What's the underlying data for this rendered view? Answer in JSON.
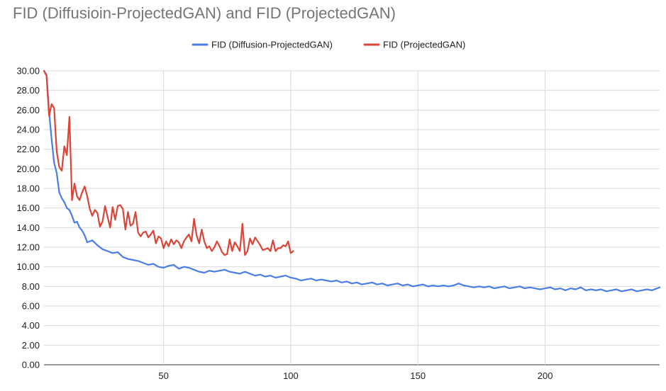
{
  "chart_data": {
    "type": "line",
    "title": "FID (Diffusioin-ProjectedGAN) and FID (ProjectedGAN)",
    "xlabel": "",
    "ylabel": "",
    "xlim": [
      3,
      245
    ],
    "ylim": [
      0,
      30
    ],
    "grid": true,
    "legend_position": "top",
    "x_ticks": [
      50,
      100,
      150,
      200
    ],
    "y_ticks": [
      "0.00",
      "2.00",
      "4.00",
      "6.00",
      "8.00",
      "10.00",
      "12.00",
      "14.00",
      "16.00",
      "18.00",
      "20.00",
      "22.00",
      "24.00",
      "26.00",
      "28.00",
      "30.00"
    ],
    "series": [
      {
        "name": "FID (Diffusion-ProjectedGAN)",
        "color": "#4a7de8",
        "x": [
          3,
          4,
          5,
          6,
          7,
          8,
          9,
          10,
          11,
          12,
          13,
          14,
          15,
          16,
          17,
          18,
          19,
          20,
          22,
          24,
          26,
          28,
          30,
          32,
          34,
          36,
          38,
          40,
          42,
          44,
          46,
          48,
          50,
          52,
          54,
          56,
          58,
          60,
          62,
          64,
          66,
          68,
          70,
          72,
          74,
          76,
          78,
          80,
          82,
          84,
          86,
          88,
          90,
          92,
          94,
          96,
          98,
          100,
          102,
          104,
          106,
          108,
          110,
          112,
          114,
          116,
          118,
          120,
          122,
          124,
          126,
          128,
          130,
          132,
          134,
          136,
          138,
          140,
          142,
          144,
          146,
          148,
          150,
          152,
          154,
          156,
          158,
          160,
          162,
          164,
          166,
          168,
          170,
          172,
          174,
          176,
          178,
          180,
          182,
          184,
          186,
          188,
          190,
          192,
          194,
          196,
          198,
          200,
          202,
          204,
          206,
          208,
          210,
          212,
          214,
          216,
          218,
          220,
          222,
          224,
          226,
          228,
          230,
          232,
          234,
          236,
          238,
          240,
          242,
          244,
          245
        ],
        "values": [
          30.0,
          29.6,
          25.8,
          23.0,
          20.6,
          19.6,
          17.6,
          17.0,
          16.6,
          16.0,
          15.8,
          15.2,
          14.5,
          14.6,
          14.0,
          13.7,
          13.2,
          12.5,
          12.7,
          12.2,
          11.8,
          11.6,
          11.4,
          11.5,
          11.0,
          10.8,
          10.7,
          10.6,
          10.4,
          10.2,
          10.3,
          10.0,
          9.9,
          10.1,
          10.2,
          9.8,
          10.0,
          9.9,
          9.7,
          9.5,
          9.4,
          9.6,
          9.5,
          9.6,
          9.7,
          9.5,
          9.4,
          9.3,
          9.5,
          9.3,
          9.1,
          9.2,
          9.0,
          9.1,
          8.9,
          9.0,
          9.1,
          8.9,
          8.8,
          8.6,
          8.7,
          8.8,
          8.6,
          8.7,
          8.6,
          8.5,
          8.6,
          8.4,
          8.5,
          8.3,
          8.4,
          8.2,
          8.3,
          8.4,
          8.2,
          8.3,
          8.1,
          8.2,
          8.3,
          8.1,
          8.2,
          8.0,
          8.1,
          8.2,
          8.0,
          8.1,
          8.0,
          8.1,
          8.0,
          8.1,
          8.3,
          8.1,
          8.0,
          7.9,
          8.0,
          7.9,
          8.0,
          7.8,
          7.9,
          8.0,
          7.8,
          7.9,
          8.0,
          7.8,
          7.9,
          7.8,
          7.7,
          7.8,
          7.9,
          7.7,
          7.8,
          7.6,
          7.8,
          7.7,
          7.9,
          7.6,
          7.7,
          7.6,
          7.7,
          7.5,
          7.6,
          7.7,
          7.5,
          7.6,
          7.7,
          7.5,
          7.6,
          7.7,
          7.6,
          7.8,
          7.9
        ]
      },
      {
        "name": "FID (ProjectedGAN)",
        "color": "#db4437",
        "x": [
          3,
          4,
          5,
          6,
          7,
          8,
          9,
          10,
          11,
          12,
          13,
          14,
          15,
          16,
          17,
          18,
          19,
          20,
          21,
          22,
          23,
          24,
          25,
          26,
          27,
          28,
          29,
          30,
          31,
          32,
          33,
          34,
          35,
          36,
          37,
          38,
          39,
          40,
          41,
          42,
          43,
          44,
          45,
          46,
          47,
          48,
          49,
          50,
          51,
          52,
          53,
          54,
          55,
          56,
          57,
          58,
          59,
          60,
          61,
          62,
          63,
          64,
          65,
          66,
          67,
          68,
          69,
          70,
          71,
          72,
          73,
          74,
          75,
          76,
          77,
          78,
          79,
          80,
          81,
          82,
          83,
          84,
          85,
          86,
          87,
          88,
          89,
          90,
          91,
          92,
          93,
          94,
          95,
          96,
          97,
          98,
          99,
          100,
          101
        ],
        "values": [
          30.0,
          29.5,
          25.4,
          26.6,
          26.2,
          21.8,
          20.2,
          19.8,
          22.3,
          21.4,
          25.3,
          16.8,
          18.5,
          17.2,
          16.8,
          17.6,
          18.2,
          17.2,
          15.9,
          15.2,
          15.8,
          15.5,
          14.1,
          14.6,
          16.2,
          15.1,
          14.0,
          16.1,
          14.8,
          16.2,
          16.3,
          15.9,
          13.8,
          15.6,
          14.2,
          14.4,
          15.6,
          13.5,
          13.1,
          13.5,
          13.6,
          13.0,
          13.3,
          13.7,
          12.4,
          13.1,
          12.9,
          11.9,
          12.6,
          12.1,
          12.8,
          12.3,
          12.7,
          12.5,
          11.9,
          12.6,
          13.0,
          13.3,
          12.6,
          14.9,
          13.2,
          12.4,
          13.8,
          12.6,
          11.9,
          12.1,
          11.6,
          12.0,
          12.6,
          12.1,
          11.5,
          11.2,
          11.3,
          12.8,
          11.6,
          12.5,
          12.1,
          11.6,
          14.4,
          11.2,
          11.6,
          12.9,
          12.3,
          13.0,
          12.6,
          12.2,
          11.7,
          11.8,
          11.9,
          11.6,
          12.7,
          11.6,
          11.9,
          11.9,
          12.2,
          12.1,
          12.6,
          11.4,
          11.6
        ]
      }
    ]
  }
}
